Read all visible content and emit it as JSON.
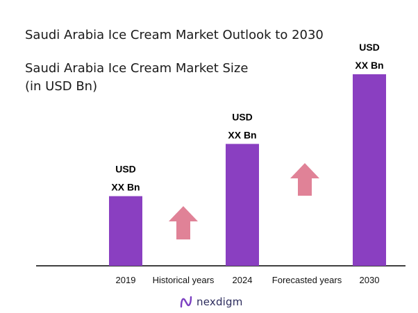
{
  "title": "Saudi Arabia Ice Cream Market Outlook to 2030",
  "subtitle_line1": "Saudi Arabia Ice Cream Market Size",
  "subtitle_line2": "(in USD Bn)",
  "brand": {
    "name": "nexdigm",
    "icon": "nexdigm-logo-icon"
  },
  "colors": {
    "bar": "#8A3FC1",
    "arrow": "#E08297",
    "axis": "#000000"
  },
  "chart_data": {
    "type": "bar",
    "categories": [
      "2019",
      "2024",
      "2030"
    ],
    "values": [
      1.0,
      1.75,
      2.75
    ],
    "value_labels": [
      [
        "USD",
        "XX Bn"
      ],
      [
        "USD",
        "XX Bn"
      ],
      [
        "USD",
        "XX Bn"
      ]
    ],
    "period_labels": [
      "Historical years",
      "Forecasted years"
    ],
    "ylim": [
      0,
      2.75
    ],
    "xlabel": "",
    "ylabel": ""
  }
}
